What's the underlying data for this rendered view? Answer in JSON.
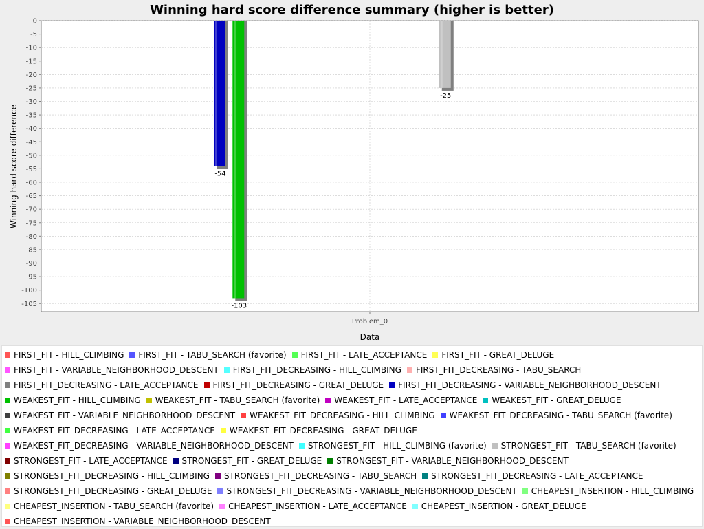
{
  "chart_data": {
    "type": "bar",
    "title": "Winning hard score difference summary (higher is better)",
    "xlabel": "Data",
    "ylabel": "Winning hard score difference",
    "categories": [
      "Problem_0"
    ],
    "ylim": [
      -108,
      0
    ],
    "y_ticks": [
      0,
      -5,
      -10,
      -15,
      -20,
      -25,
      -30,
      -35,
      -40,
      -45,
      -50,
      -55,
      -60,
      -65,
      -70,
      -75,
      -80,
      -85,
      -90,
      -95,
      -100,
      -105
    ],
    "grid": true,
    "legend_position": "bottom",
    "series": [
      {
        "name": "FIRST_FIT - HILL_CLIMBING",
        "color": "#ff5555",
        "values": [
          null
        ]
      },
      {
        "name": "FIRST_FIT - TABU_SEARCH (favorite)",
        "color": "#5555ff",
        "values": [
          null
        ]
      },
      {
        "name": "FIRST_FIT - LATE_ACCEPTANCE",
        "color": "#55ff55",
        "values": [
          null
        ]
      },
      {
        "name": "FIRST_FIT - GREAT_DELUGE",
        "color": "#ffff55",
        "values": [
          null
        ]
      },
      {
        "name": "FIRST_FIT - VARIABLE_NEIGHBORHOOD_DESCENT",
        "color": "#ff55ff",
        "values": [
          null
        ]
      },
      {
        "name": "FIRST_FIT_DECREASING - HILL_CLIMBING",
        "color": "#55ffff",
        "values": [
          null
        ]
      },
      {
        "name": "FIRST_FIT_DECREASING - TABU_SEARCH",
        "color": "#ffafaf",
        "values": [
          null
        ]
      },
      {
        "name": "FIRST_FIT_DECREASING - LATE_ACCEPTANCE",
        "color": "#808080",
        "values": [
          null
        ]
      },
      {
        "name": "FIRST_FIT_DECREASING - GREAT_DELUGE",
        "color": "#c00000",
        "values": [
          null
        ]
      },
      {
        "name": "FIRST_FIT_DECREASING - VARIABLE_NEIGHBORHOOD_DESCENT",
        "color": "#0000c0",
        "values": [
          -54
        ]
      },
      {
        "name": "WEAKEST_FIT - HILL_CLIMBING",
        "color": "#00c000",
        "values": [
          -103
        ]
      },
      {
        "name": "WEAKEST_FIT - TABU_SEARCH (favorite)",
        "color": "#c0c000",
        "values": [
          null
        ]
      },
      {
        "name": "WEAKEST_FIT - LATE_ACCEPTANCE",
        "color": "#c000c0",
        "values": [
          null
        ]
      },
      {
        "name": "WEAKEST_FIT - GREAT_DELUGE",
        "color": "#00c0c0",
        "values": [
          null
        ]
      },
      {
        "name": "WEAKEST_FIT - VARIABLE_NEIGHBORHOOD_DESCENT",
        "color": "#404040",
        "values": [
          null
        ]
      },
      {
        "name": "WEAKEST_FIT_DECREASING - HILL_CLIMBING",
        "color": "#ff4040",
        "values": [
          null
        ]
      },
      {
        "name": "WEAKEST_FIT_DECREASING - TABU_SEARCH (favorite)",
        "color": "#4040ff",
        "values": [
          null
        ]
      },
      {
        "name": "WEAKEST_FIT_DECREASING - LATE_ACCEPTANCE",
        "color": "#40ff40",
        "values": [
          null
        ]
      },
      {
        "name": "WEAKEST_FIT_DECREASING - GREAT_DELUGE",
        "color": "#ffff40",
        "values": [
          null
        ]
      },
      {
        "name": "WEAKEST_FIT_DECREASING - VARIABLE_NEIGHBORHOOD_DESCENT",
        "color": "#ff40ff",
        "values": [
          null
        ]
      },
      {
        "name": "STRONGEST_FIT - HILL_CLIMBING (favorite)",
        "color": "#40ffff",
        "values": [
          null
        ]
      },
      {
        "name": "STRONGEST_FIT - TABU_SEARCH (favorite)",
        "color": "#c0c0c0",
        "values": [
          -25
        ]
      },
      {
        "name": "STRONGEST_FIT - LATE_ACCEPTANCE",
        "color": "#800000",
        "values": [
          null
        ]
      },
      {
        "name": "STRONGEST_FIT - GREAT_DELUGE",
        "color": "#000080",
        "values": [
          null
        ]
      },
      {
        "name": "STRONGEST_FIT - VARIABLE_NEIGHBORHOOD_DESCENT",
        "color": "#008000",
        "values": [
          null
        ]
      },
      {
        "name": "STRONGEST_FIT_DECREASING - HILL_CLIMBING",
        "color": "#808000",
        "values": [
          null
        ]
      },
      {
        "name": "STRONGEST_FIT_DECREASING - TABU_SEARCH",
        "color": "#800080",
        "values": [
          null
        ]
      },
      {
        "name": "STRONGEST_FIT_DECREASING - LATE_ACCEPTANCE",
        "color": "#008080",
        "values": [
          null
        ]
      },
      {
        "name": "STRONGEST_FIT_DECREASING - GREAT_DELUGE",
        "color": "#ff8080",
        "values": [
          null
        ]
      },
      {
        "name": "STRONGEST_FIT_DECREASING - VARIABLE_NEIGHBORHOOD_DESCENT",
        "color": "#8080ff",
        "values": [
          null
        ]
      },
      {
        "name": "CHEAPEST_INSERTION - HILL_CLIMBING",
        "color": "#80ff80",
        "values": [
          null
        ]
      },
      {
        "name": "CHEAPEST_INSERTION - TABU_SEARCH (favorite)",
        "color": "#ffff80",
        "values": [
          null
        ]
      },
      {
        "name": "CHEAPEST_INSERTION - LATE_ACCEPTANCE",
        "color": "#ff80ff",
        "values": [
          null
        ]
      },
      {
        "name": "CHEAPEST_INSERTION - GREAT_DELUGE",
        "color": "#80ffff",
        "values": [
          null
        ]
      },
      {
        "name": "CHEAPEST_INSERTION - VARIABLE_NEIGHBORHOOD_DESCENT",
        "color": "#ff5555",
        "values": [
          null
        ]
      }
    ]
  }
}
